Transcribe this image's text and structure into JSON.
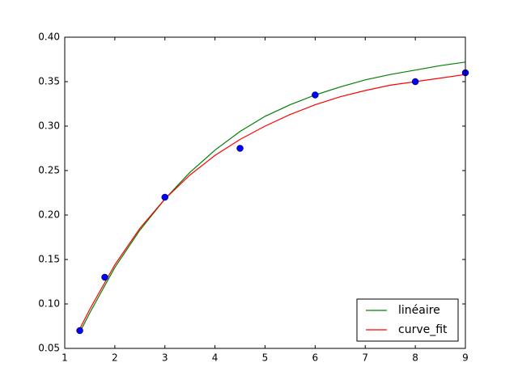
{
  "chart_data": {
    "type": "line",
    "x": [
      1.3,
      1.5,
      2,
      2.5,
      3,
      3.5,
      4,
      4.5,
      5,
      5.5,
      6,
      6.5,
      7,
      7.5,
      8,
      8.5,
      9
    ],
    "series": [
      {
        "name": "linéaire",
        "color": "#008000",
        "values": [
          0.068,
          0.09,
          0.141,
          0.183,
          0.218,
          0.248,
          0.273,
          0.294,
          0.311,
          0.324,
          0.335,
          0.344,
          0.352,
          0.358,
          0.363,
          0.368,
          0.372
        ]
      },
      {
        "name": "curve_fit",
        "color": "#ff0000",
        "values": [
          0.072,
          0.094,
          0.144,
          0.185,
          0.218,
          0.245,
          0.267,
          0.285,
          0.3,
          0.313,
          0.324,
          0.333,
          0.34,
          0.346,
          0.35,
          0.354,
          0.358
        ]
      }
    ],
    "points": {
      "color": "#0000ff",
      "x": [
        1.3,
        1.8,
        3,
        4.5,
        6,
        8,
        9
      ],
      "y": [
        0.07,
        0.13,
        0.22,
        0.275,
        0.335,
        0.35,
        0.36
      ]
    },
    "xlim": [
      1,
      9
    ],
    "xticks": [
      1,
      2,
      3,
      4,
      5,
      6,
      7,
      8,
      9
    ],
    "ylim": [
      0.05,
      0.4
    ],
    "yticks": [
      0.05,
      {
        "value": 0.1,
        "label": "0.10"
      },
      0.15,
      {
        "value": 0.2,
        "label": "0.20"
      },
      0.25,
      {
        "value": 0.3,
        "label": "0.30"
      },
      0.35,
      {
        "value": 0.4,
        "label": "0.40"
      }
    ],
    "legend": "lower right"
  }
}
